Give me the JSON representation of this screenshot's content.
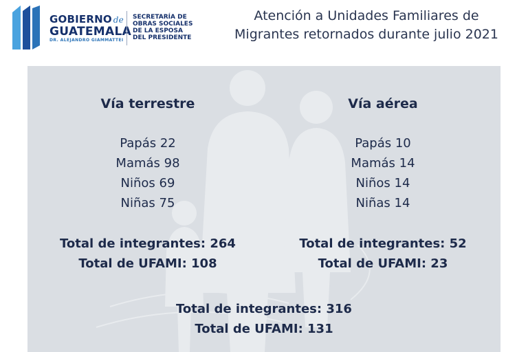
{
  "header": {
    "logo": {
      "line1": "GOBIERNO",
      "line1_script": "de",
      "line2": "GUATEMALA",
      "line3": "DR. ALEJANDRO GIAMMATTEI",
      "secretariat": [
        "SECRETARÍA DE",
        "OBRAS SOCIALES",
        "DE LA ESPOSA",
        "DEL PRESIDENTE"
      ]
    },
    "title_line1": "Atención a Unidades Familiares de",
    "title_line2": "Migrantes retornados durante julio 2021"
  },
  "terrestre": {
    "heading": "Vía terrestre",
    "items": [
      "Papás 22",
      "Mamás 98",
      "Niños 69",
      "Niñas 75"
    ],
    "total_integrantes": "Total de integrantes: 264",
    "total_ufami": "Total de UFAMI: 108"
  },
  "aerea": {
    "heading": "Vía aérea",
    "items": [
      "Papás 10",
      "Mamás 14",
      "Niños 14",
      "Niñas 14"
    ],
    "total_integrantes": "Total de integrantes: 52",
    "total_ufami": "Total de UFAMI: 23"
  },
  "grand_total": {
    "integrantes": "Total de integrantes: 316",
    "ufami": "Total de UFAMI: 131"
  },
  "colors": {
    "panel_bg": "#dadee3",
    "text": "#1d2a4a",
    "brand_blue": "#15306b",
    "brand_light_blue": "#2b73b8"
  }
}
